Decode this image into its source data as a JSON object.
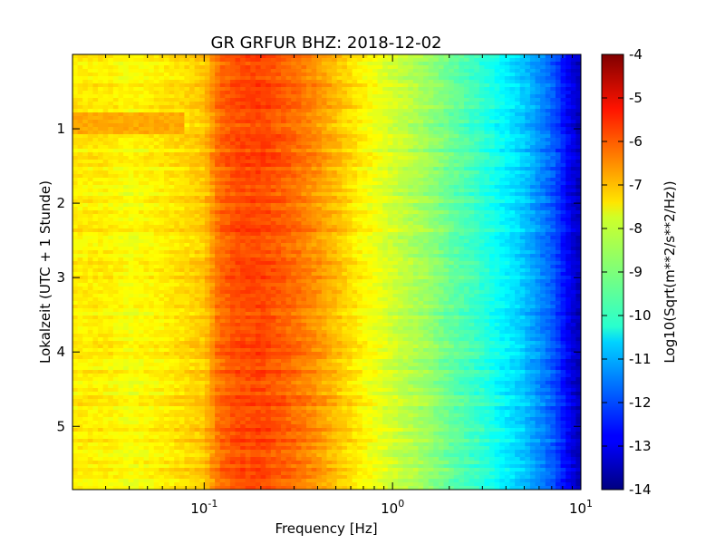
{
  "chart_data": {
    "type": "heatmap",
    "title": "GR GRFUR BHZ: 2018-12-02",
    "xlabel": "Frequency [Hz]",
    "ylabel": "Lokalzeit (UTC + 1 Stunde)",
    "xscale": "log",
    "xlim": [
      0.02,
      10
    ],
    "ylim": [
      0,
      5.85
    ],
    "y_inverted": true,
    "x_ticks": [
      {
        "value": 0.1,
        "base": "10",
        "exp": "-1"
      },
      {
        "value": 1,
        "base": "10",
        "exp": "0"
      },
      {
        "value": 10,
        "base": "10",
        "exp": "1"
      }
    ],
    "y_ticks": [
      {
        "value": 1,
        "label": "1"
      },
      {
        "value": 2,
        "label": "2"
      },
      {
        "value": 3,
        "label": "3"
      },
      {
        "value": 4,
        "label": "4"
      },
      {
        "value": 5,
        "label": "5"
      }
    ],
    "colorbar": {
      "label": "Log10(Sqrt(m**2/s**2/Hz))",
      "range": [
        -14,
        -4
      ],
      "colormap": "jet",
      "ticks": [
        "-4",
        "-5",
        "-6",
        "-7",
        "-8",
        "-9",
        "-10",
        "-11",
        "-12",
        "-13",
        "-14"
      ]
    },
    "spectrum_profile": {
      "frequency_hz": [
        0.02,
        0.03,
        0.04,
        0.06,
        0.08,
        0.1,
        0.12,
        0.15,
        0.2,
        0.3,
        0.4,
        0.5,
        0.7,
        1.0,
        1.5,
        2.0,
        3.0,
        5.0,
        7.0,
        8.5,
        10.0
      ],
      "level": [
        -7.6,
        -7.6,
        -7.8,
        -7.6,
        -7.4,
        -7.2,
        -6.3,
        -6.0,
        -5.9,
        -6.3,
        -6.7,
        -7.1,
        -7.7,
        -8.2,
        -8.7,
        -9.2,
        -9.8,
        -10.8,
        -11.8,
        -12.8,
        -13.5
      ]
    },
    "anomaly": {
      "time_range": [
        0.8,
        1.05
      ],
      "frequency_range": [
        0.02,
        0.08
      ],
      "level": -6.9
    }
  }
}
